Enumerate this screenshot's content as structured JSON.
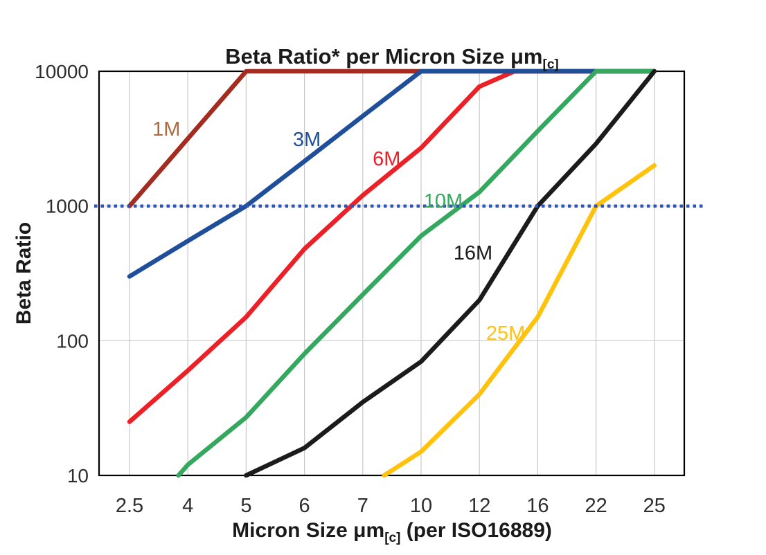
{
  "chart_data": {
    "type": "line",
    "title_segments": [
      {
        "text": "Beta Ratio* per Micron Size μm"
      },
      {
        "text": "[c]",
        "subscript": true
      }
    ],
    "x_axis": {
      "label_segments": [
        {
          "text": "Micron Size μm"
        },
        {
          "text": "[c]",
          "subscript": true
        },
        {
          "text": " (per ISO16889)"
        }
      ],
      "categories": [
        2.5,
        4,
        5,
        6,
        7,
        10,
        12,
        16,
        22,
        25
      ],
      "tick_labels": [
        "2.5",
        "4",
        "5",
        "6",
        "7",
        "10",
        "12",
        "16",
        "22",
        "25"
      ]
    },
    "y_axis": {
      "label": "Beta Ratio",
      "scale": "log",
      "range": [
        10,
        10000
      ],
      "ticks": [
        10,
        100,
        1000,
        10000
      ],
      "tick_labels": [
        "10",
        "100",
        "1000",
        "10000"
      ]
    },
    "grid": {
      "color": "#C9C9C9",
      "vertical": true,
      "horizontal": true
    },
    "reference_line": {
      "beta": 1000,
      "style": "dotted",
      "color": "#2B55BE"
    },
    "series": [
      {
        "name": "1M",
        "color": "#A32B20",
        "label": {
          "text": "1M",
          "color": "#B06A41",
          "micron": 3.45,
          "beta": 3700
        },
        "points": [
          [
            2.5,
            1000
          ],
          [
            4,
            3160
          ],
          [
            5,
            10000
          ],
          [
            25,
            10000
          ]
        ]
      },
      {
        "name": "3M",
        "color": "#1F4E9B",
        "label": {
          "text": "3M",
          "color": "#1F4E9B",
          "micron": 6.04,
          "beta": 3100
        },
        "points": [
          [
            2.5,
            300
          ],
          [
            4,
            550
          ],
          [
            5,
            1000
          ],
          [
            6,
            2150
          ],
          [
            7,
            4650
          ],
          [
            10,
            10000
          ],
          [
            25,
            10000
          ]
        ]
      },
      {
        "name": "6M",
        "color": "#EC2027",
        "label": {
          "text": "6M",
          "color": "#EC2027",
          "micron": 8.23,
          "beta": 2230
        },
        "points": [
          [
            2.5,
            25
          ],
          [
            4,
            60
          ],
          [
            5,
            150
          ],
          [
            6,
            480
          ],
          [
            7,
            1200
          ],
          [
            10,
            2700
          ],
          [
            12,
            7700
          ],
          [
            14.4,
            10000
          ],
          [
            25,
            10000
          ]
        ]
      },
      {
        "name": "10M",
        "color": "#34A85E",
        "label": {
          "text": "10M",
          "color": "#34A85E",
          "micron": 10.76,
          "beta": 1080
        },
        "points": [
          [
            3.76,
            10
          ],
          [
            4,
            12
          ],
          [
            5,
            27
          ],
          [
            6,
            80
          ],
          [
            7,
            220
          ],
          [
            10,
            600
          ],
          [
            12,
            1270
          ],
          [
            16,
            3600
          ],
          [
            22,
            10000
          ],
          [
            25,
            10000
          ]
        ]
      },
      {
        "name": "16M",
        "color": "#1B1B1B",
        "label": {
          "text": "16M",
          "color": "#1B1B1B",
          "micron": 11.78,
          "beta": 446
        },
        "points": [
          [
            5,
            10
          ],
          [
            6,
            16
          ],
          [
            7,
            35
          ],
          [
            10,
            70
          ],
          [
            12,
            200
          ],
          [
            16,
            1000
          ],
          [
            22,
            2900
          ],
          [
            25,
            10000
          ]
        ]
      },
      {
        "name": "25M",
        "color": "#FFC20D",
        "label": {
          "text": "25M",
          "color": "#FFC214",
          "micron": 13.8,
          "beta": 113
        },
        "points": [
          [
            8.1,
            10
          ],
          [
            10,
            15
          ],
          [
            12,
            40
          ],
          [
            16,
            150
          ],
          [
            22,
            1000
          ],
          [
            25,
            2000
          ]
        ]
      }
    ],
    "draw_order": [
      "1M",
      "6M",
      "3M",
      "10M",
      "16M",
      "25M"
    ],
    "notes": "Beta value 10000 means the curve is capped at the chart top; log y-axis"
  },
  "text_colors": {
    "title": "#1a1a1a",
    "axis_title": "#1a1a1a",
    "tick": "#2d2d2d"
  }
}
